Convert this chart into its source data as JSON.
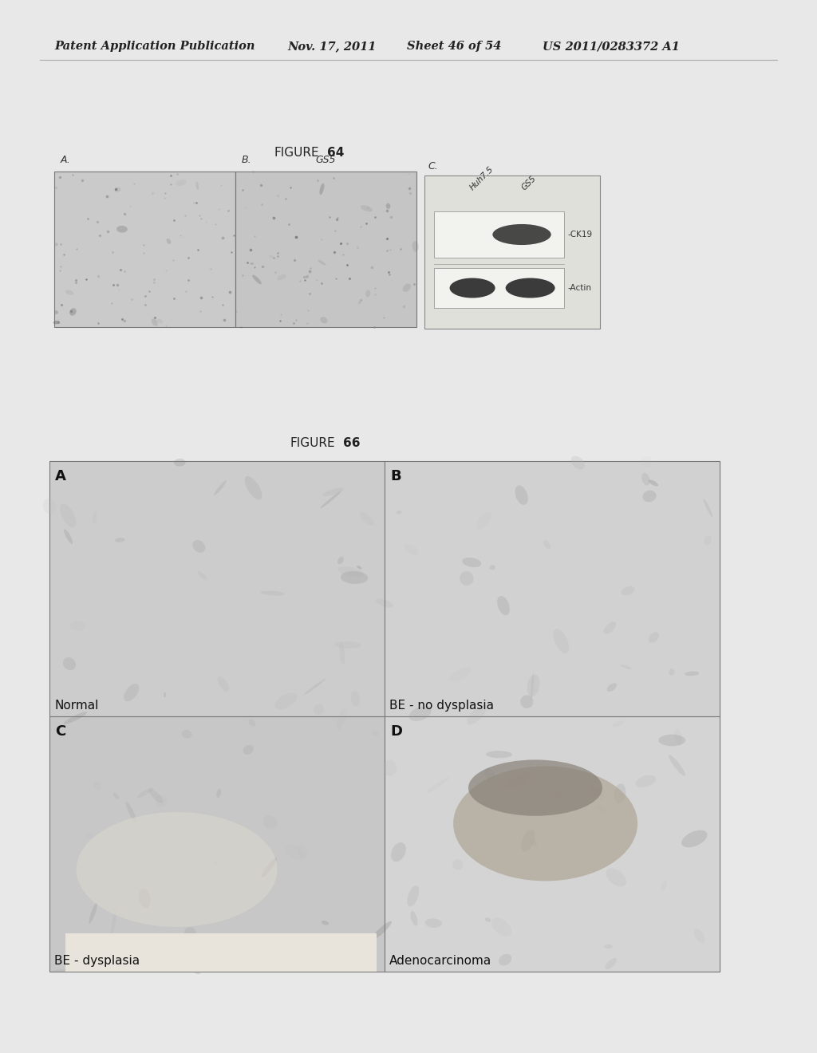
{
  "page_bg": "#e8e8e8",
  "header_text": "Patent Application Publication",
  "header_date": "Nov. 17, 2011",
  "header_sheet": "Sheet 46 of 54",
  "header_patent": "US 2011/0283372 A1",
  "fig64_title": "FIGURE 64",
  "fig64_title_fontsize": 11,
  "fig66_title": "FIGURE 66",
  "fig66_title_fontsize": 11,
  "fig66_sublabels": [
    "Normal",
    "BE - no dysplasia",
    "BE - dysplasia",
    "Adenocarcinoma"
  ],
  "fig66_letters": [
    "A",
    "B",
    "C",
    "D"
  ],
  "panel_bg_ab": "#c8c8c0",
  "panel_bg_wb": "#e4e4e0",
  "panel_grid_A": "#d0cec8",
  "panel_grid_B": "#ceccc6",
  "panel_grid_C": "#c8c8be",
  "panel_grid_D": "#c4c0b0",
  "wb_band_ck19": "#2a2a2a",
  "wb_band_actin": "#222222",
  "text_dark": "#222222",
  "text_med": "#444444",
  "border_color": "#888888",
  "line_color": "#666666"
}
